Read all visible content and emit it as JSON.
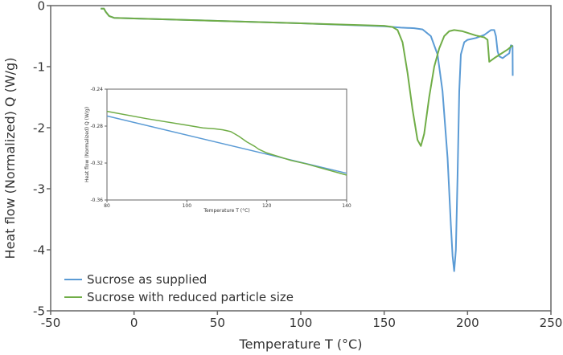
{
  "chart_data": [
    {
      "type": "line",
      "title": "",
      "xlabel": "Temperature T (°C)",
      "ylabel": "Heat flow (Normalized) Q (W/g)",
      "xlim": [
        -50,
        250
      ],
      "ylim": [
        -5,
        0
      ],
      "xticks": [
        "-50",
        "0",
        "50",
        "100",
        "150",
        "200",
        "250"
      ],
      "yticks": [
        "0",
        "-1",
        "-2",
        "-3",
        "-4",
        "-5"
      ],
      "grid": false,
      "legend_position": "bottom-left",
      "series": [
        {
          "name": "Sucrose as supplied",
          "color": "#5b9bd5",
          "x": [
            -20,
            -18,
            -17,
            -15,
            -12,
            0,
            50,
            100,
            150,
            160,
            168,
            173,
            178,
            182,
            185,
            188,
            190,
            191,
            192,
            193,
            194,
            195,
            196,
            198,
            200,
            205,
            210,
            214,
            216,
            217,
            218,
            219,
            221,
            223,
            225,
            226,
            227,
            227.1
          ],
          "y": [
            -0.05,
            -0.05,
            -0.1,
            -0.17,
            -0.2,
            -0.21,
            -0.25,
            -0.29,
            -0.34,
            -0.36,
            -0.37,
            -0.39,
            -0.5,
            -0.8,
            -1.4,
            -2.5,
            -3.6,
            -4.1,
            -4.35,
            -4.0,
            -2.8,
            -1.4,
            -0.8,
            -0.6,
            -0.56,
            -0.53,
            -0.48,
            -0.4,
            -0.4,
            -0.5,
            -0.75,
            -0.83,
            -0.86,
            -0.82,
            -0.78,
            -0.65,
            -0.66,
            -1.15
          ]
        },
        {
          "name": "Sucrose with reduced particle size",
          "color": "#70ad47",
          "x": [
            -20,
            -18,
            -17,
            -15,
            -12,
            0,
            50,
            100,
            150,
            155,
            158,
            161,
            164,
            167,
            170,
            172,
            174,
            177,
            180,
            183,
            186,
            189,
            192,
            197,
            205,
            210,
            212,
            213,
            216,
            220,
            224,
            227
          ],
          "y": [
            -0.05,
            -0.05,
            -0.1,
            -0.17,
            -0.2,
            -0.21,
            -0.25,
            -0.29,
            -0.33,
            -0.35,
            -0.4,
            -0.6,
            -1.1,
            -1.7,
            -2.2,
            -2.3,
            -2.1,
            -1.5,
            -1.0,
            -0.7,
            -0.5,
            -0.42,
            -0.4,
            -0.42,
            -0.49,
            -0.52,
            -0.56,
            -0.92,
            -0.86,
            -0.79,
            -0.72,
            -0.65
          ]
        }
      ]
    },
    {
      "type": "line",
      "title": "",
      "xlabel": "Temperature T (°C)",
      "ylabel": "Heat flow (Normalized) Q (W/g)",
      "xlim": [
        80,
        140
      ],
      "ylim": [
        -0.36,
        -0.24
      ],
      "xticks": [
        "80",
        "100",
        "120",
        "140"
      ],
      "yticks": [
        "-0.24",
        "-0.28",
        "-0.32",
        "-0.36"
      ],
      "grid": false,
      "series": [
        {
          "name": "Sucrose as supplied",
          "color": "#5b9bd5",
          "x": [
            80,
            140
          ],
          "y": [
            -0.269,
            -0.331
          ]
        },
        {
          "name": "Sucrose with reduced particle size",
          "color": "#70ad47",
          "x": [
            80,
            90,
            100,
            104,
            107,
            109,
            111,
            113,
            115,
            117,
            118,
            120,
            123,
            126,
            130,
            135,
            140
          ],
          "y": [
            -0.264,
            -0.272,
            -0.279,
            -0.282,
            -0.283,
            -0.284,
            -0.286,
            -0.291,
            -0.297,
            -0.302,
            -0.305,
            -0.309,
            -0.313,
            -0.317,
            -0.321,
            -0.327,
            -0.333
          ]
        }
      ]
    }
  ]
}
